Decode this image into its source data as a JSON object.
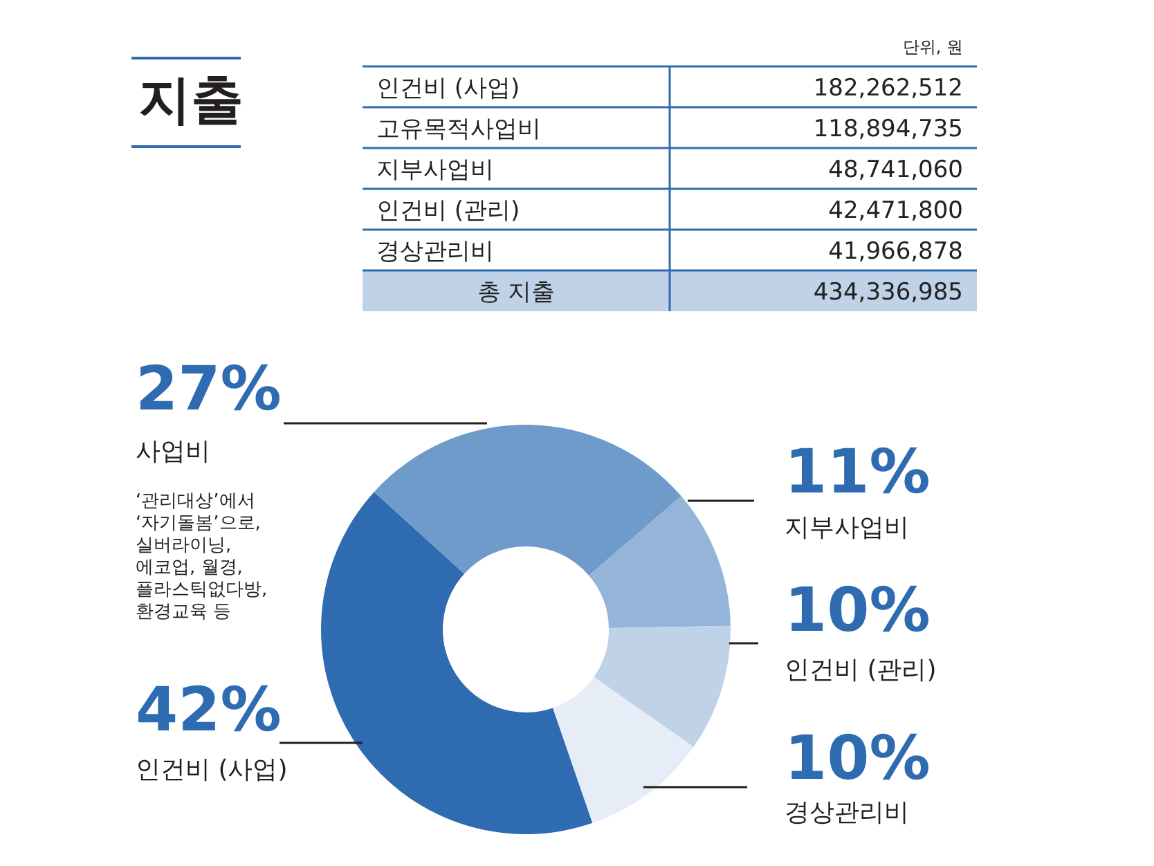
{
  "chart_data": [
    {
      "type": "other",
      "title": "지출",
      "annotations": [
        "단위, 원"
      ],
      "categories": [
        "인건비 (사업)",
        "고유목적사업비",
        "지부사업비",
        "인건비 (관리)",
        "경상관리비",
        "총 지출"
      ],
      "values": [
        182262512,
        118894735,
        48741060,
        42471800,
        41966878,
        434336985
      ],
      "value_labels": [
        "182,262,512",
        "118,894,735",
        "48,741,060",
        "42,471,800",
        "41,966,878",
        "434,336,985"
      ]
    },
    {
      "type": "donut",
      "categories": [
        "인건비 (사업)",
        "사업비",
        "지부사업비",
        "인건비 (관리)",
        "경상관리비"
      ],
      "values": [
        42,
        27,
        11,
        10,
        10
      ],
      "value_labels": [
        "42%",
        "27%",
        "11%",
        "10%",
        "10%"
      ],
      "colors": [
        "#2e6bb0",
        "#6f9bcb",
        "#95b4d9",
        "#bfd2e8",
        "#e6edf6"
      ],
      "annotations": [
        "‘관리대상’에서\n‘자기돌봄’으로,\n실버라이닝,\n에코업, 월경,\n플라스틱없다방,\n환경교육 등"
      ]
    }
  ]
}
